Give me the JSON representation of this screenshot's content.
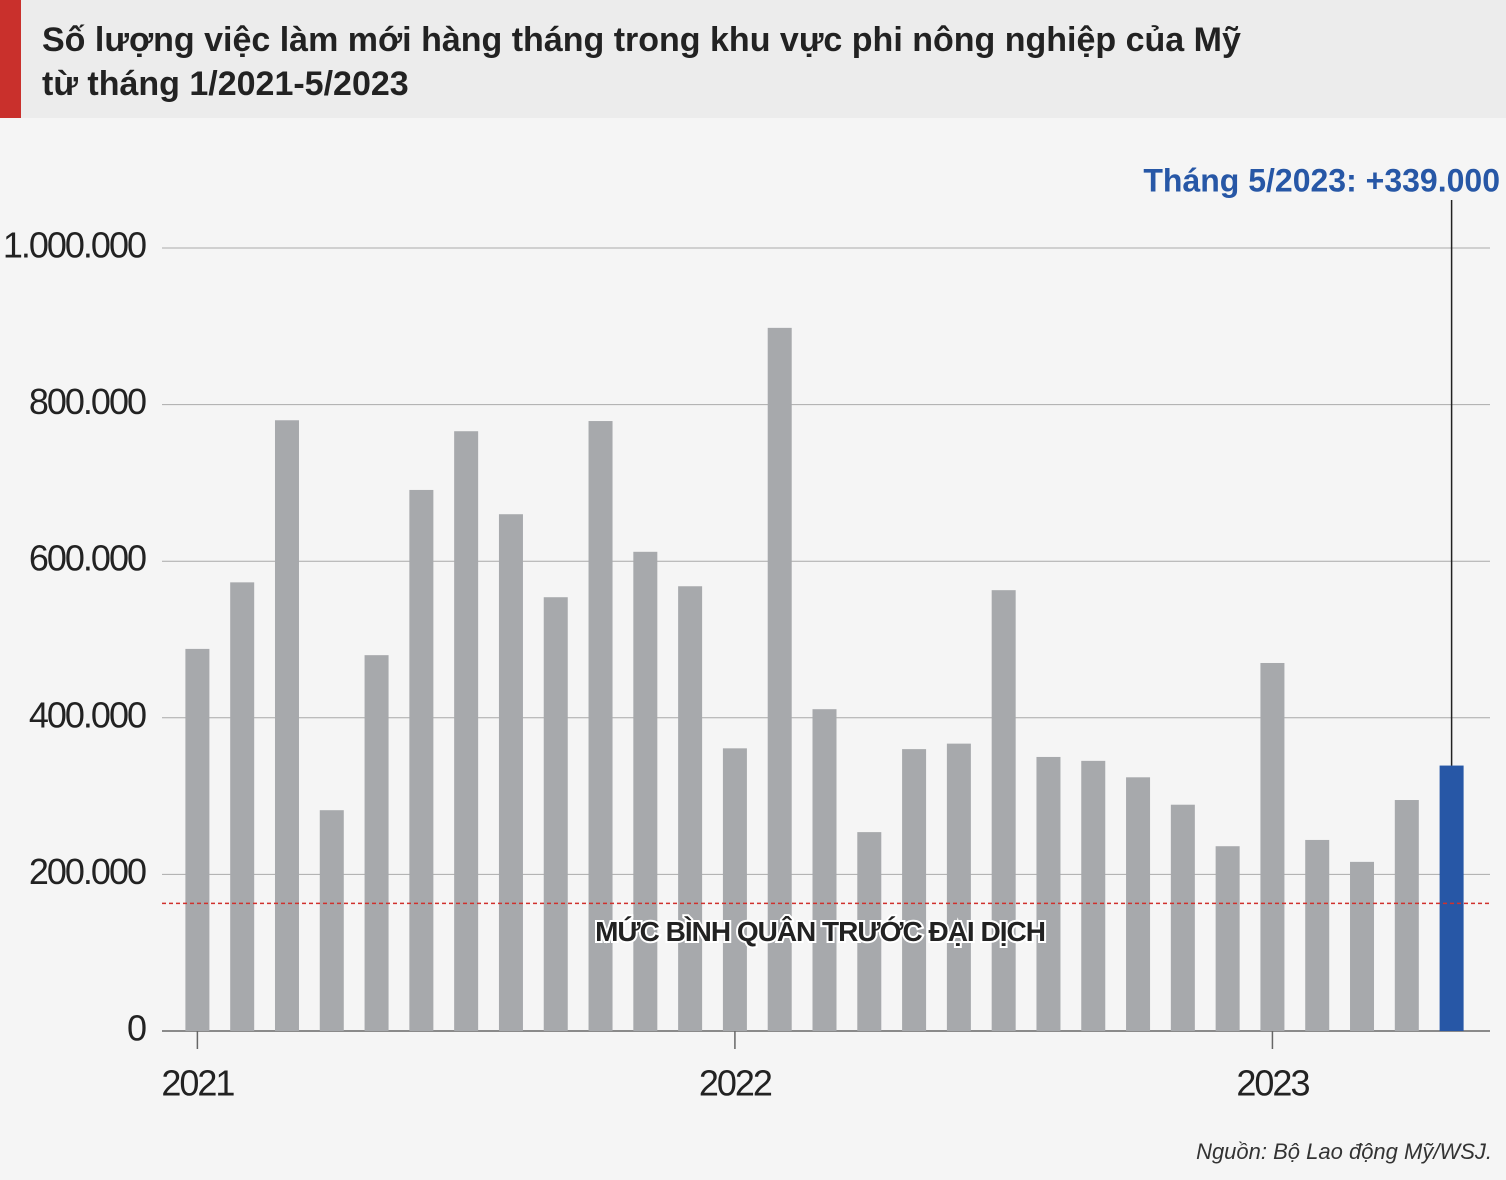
{
  "chart_data": {
    "type": "bar",
    "title": [
      "Số lượng việc làm mới hàng tháng trong khu vực phi nông nghiệp của Mỹ",
      "từ tháng 1/2021-5/2023"
    ],
    "categories": [
      "2021",
      null,
      null,
      null,
      null,
      null,
      null,
      null,
      null,
      null,
      null,
      null,
      "2022",
      null,
      null,
      null,
      null,
      null,
      null,
      null,
      null,
      null,
      null,
      null,
      "2023",
      null,
      null,
      null,
      null
    ],
    "values": [
      488000,
      573000,
      780000,
      282000,
      480000,
      691000,
      766000,
      660000,
      554000,
      779000,
      612000,
      568000,
      361000,
      898000,
      411000,
      254000,
      360000,
      367000,
      563000,
      350000,
      345000,
      324000,
      289000,
      236000,
      470000,
      244000,
      216000,
      295000,
      339000
    ],
    "color": "#a7a9ac",
    "highlight": {
      "index": 28,
      "color": "#2757a6",
      "label": "Tháng 5/2023: +339.000"
    },
    "reference_line": {
      "value": 163000,
      "label": "MỨC BÌNH QUÂN TRƯỚC ĐẠI DỊCH",
      "color": "#d0312d"
    },
    "ylim": [
      0,
      1000000
    ],
    "yticks": [
      0,
      {
        "value": 200000,
        "label": "200.000"
      },
      {
        "value": 400000,
        "label": "400.000"
      },
      {
        "value": 600000,
        "label": "600.000"
      },
      {
        "value": 800000,
        "label": "800.000"
      },
      {
        "value": 1000000,
        "label": "1.000.000"
      }
    ],
    "grid": true,
    "source": "Nguồn: Bộ Lao động Mỹ/WSJ."
  }
}
